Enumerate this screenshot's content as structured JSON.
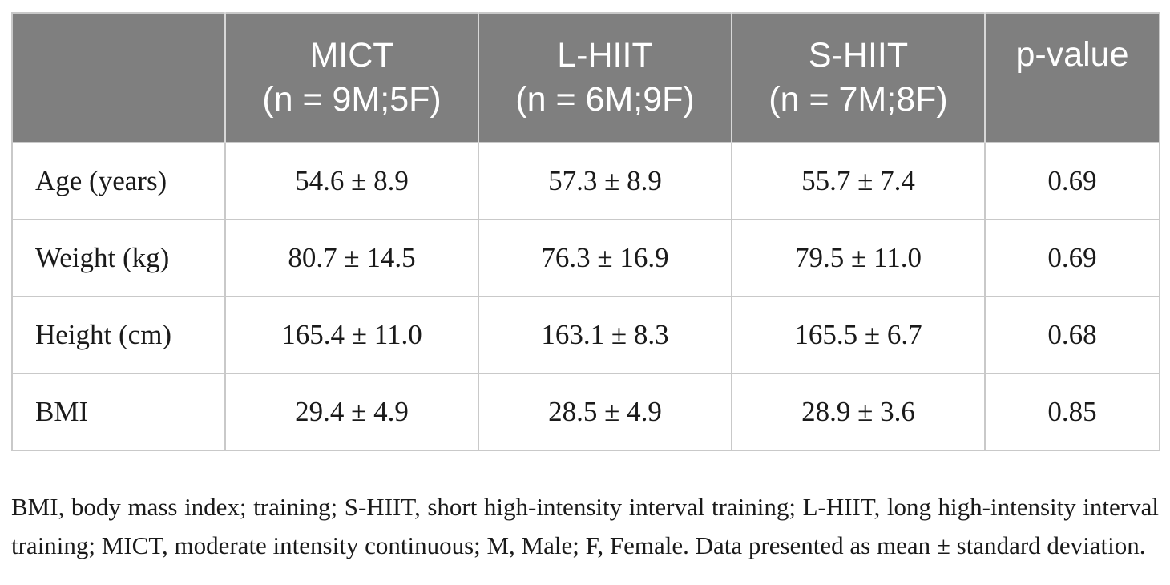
{
  "table": {
    "headers": [
      {
        "line1": "",
        "line2": ""
      },
      {
        "line1": "MICT",
        "line2": "(n = 9M;5F)"
      },
      {
        "line1": "L-HIIT",
        "line2": "(n = 6M;9F)"
      },
      {
        "line1": "S-HIIT",
        "line2": "(n = 7M;8F)"
      },
      {
        "line1": "p-value",
        "line2": ""
      }
    ],
    "rows": [
      {
        "label": "Age (years)",
        "mict": "54.6 ± 8.9",
        "lhiit": "57.3 ± 8.9",
        "shiit": "55.7 ± 7.4",
        "p": "0.69"
      },
      {
        "label": "Weight (kg)",
        "mict": "80.7 ± 14.5",
        "lhiit": "76.3 ± 16.9",
        "shiit": "79.5 ± 11.0",
        "p": "0.69"
      },
      {
        "label": "Height (cm)",
        "mict": "165.4 ± 11.0",
        "lhiit": "163.1 ± 8.3",
        "shiit": "165.5 ± 6.7",
        "p": "0.68"
      },
      {
        "label": "BMI",
        "mict": "29.4 ± 4.9",
        "lhiit": "28.5 ± 4.9",
        "shiit": "28.9 ± 3.6",
        "p": "0.85"
      }
    ]
  },
  "footnote": "BMI, body mass index; training; S-HIIT, short high-intensity interval training; L-HIIT, long high-intensity interval training; MICT, moderate intensity continuous; M, Male; F, Female. Data presented as mean ± standard deviation."
}
